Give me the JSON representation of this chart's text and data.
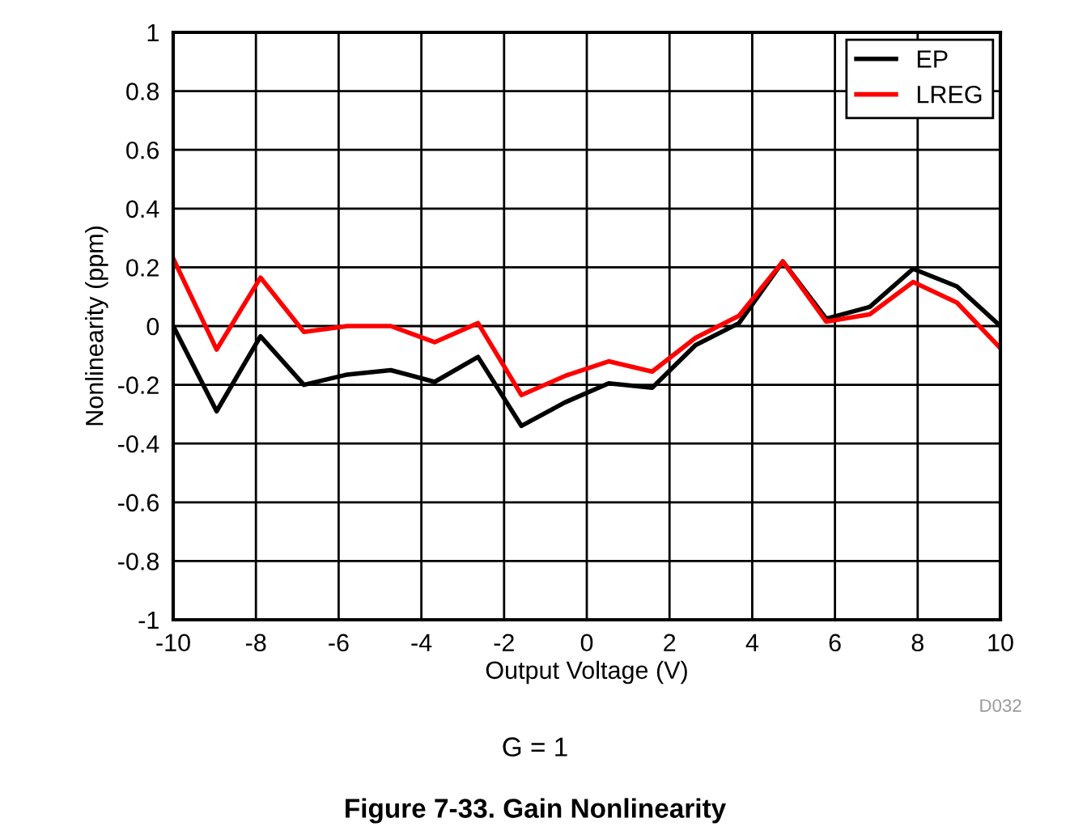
{
  "chart_data": {
    "type": "line",
    "title": "Figure 7-33. Gain Nonlinearity",
    "xlabel": "Output Voltage (V)",
    "ylabel": "Nonlinearity (ppm)",
    "x": [
      -10,
      -8.95,
      -7.89,
      -6.84,
      -5.79,
      -4.74,
      -3.68,
      -2.63,
      -1.58,
      -0.53,
      0.53,
      1.58,
      2.63,
      3.68,
      4.74,
      5.79,
      6.84,
      7.89,
      8.95,
      10
    ],
    "series": [
      {
        "name": "EP",
        "color": "#000000",
        "values": [
          0,
          -0.29,
          -0.035,
          -0.2,
          -0.165,
          -0.15,
          -0.19,
          -0.105,
          -0.34,
          -0.26,
          -0.195,
          -0.21,
          -0.065,
          0.01,
          0.22,
          0.025,
          0.065,
          0.195,
          0.135,
          0.0
        ]
      },
      {
        "name": "LREG",
        "color": "#ff0000",
        "values": [
          0.23,
          -0.08,
          0.165,
          -0.02,
          0.0,
          0.0,
          -0.055,
          0.01,
          -0.235,
          -0.17,
          -0.12,
          -0.155,
          -0.04,
          0.035,
          0.22,
          0.015,
          0.04,
          0.15,
          0.08,
          -0.075
        ]
      }
    ],
    "xlim": [
      -10,
      10
    ],
    "xticks": [
      -10,
      -8,
      -6,
      -4,
      -2,
      0,
      2,
      4,
      6,
      8,
      10
    ],
    "ylim": [
      -1,
      1
    ],
    "yticks": [
      -1,
      -0.8,
      -0.6,
      -0.4,
      -0.2,
      0,
      0.2,
      0.4,
      0.6,
      0.8,
      1
    ],
    "grid": true,
    "legend": "top right",
    "marker": "none",
    "line_style": "solid",
    "annotations": [
      "D032",
      "G = 1"
    ]
  }
}
